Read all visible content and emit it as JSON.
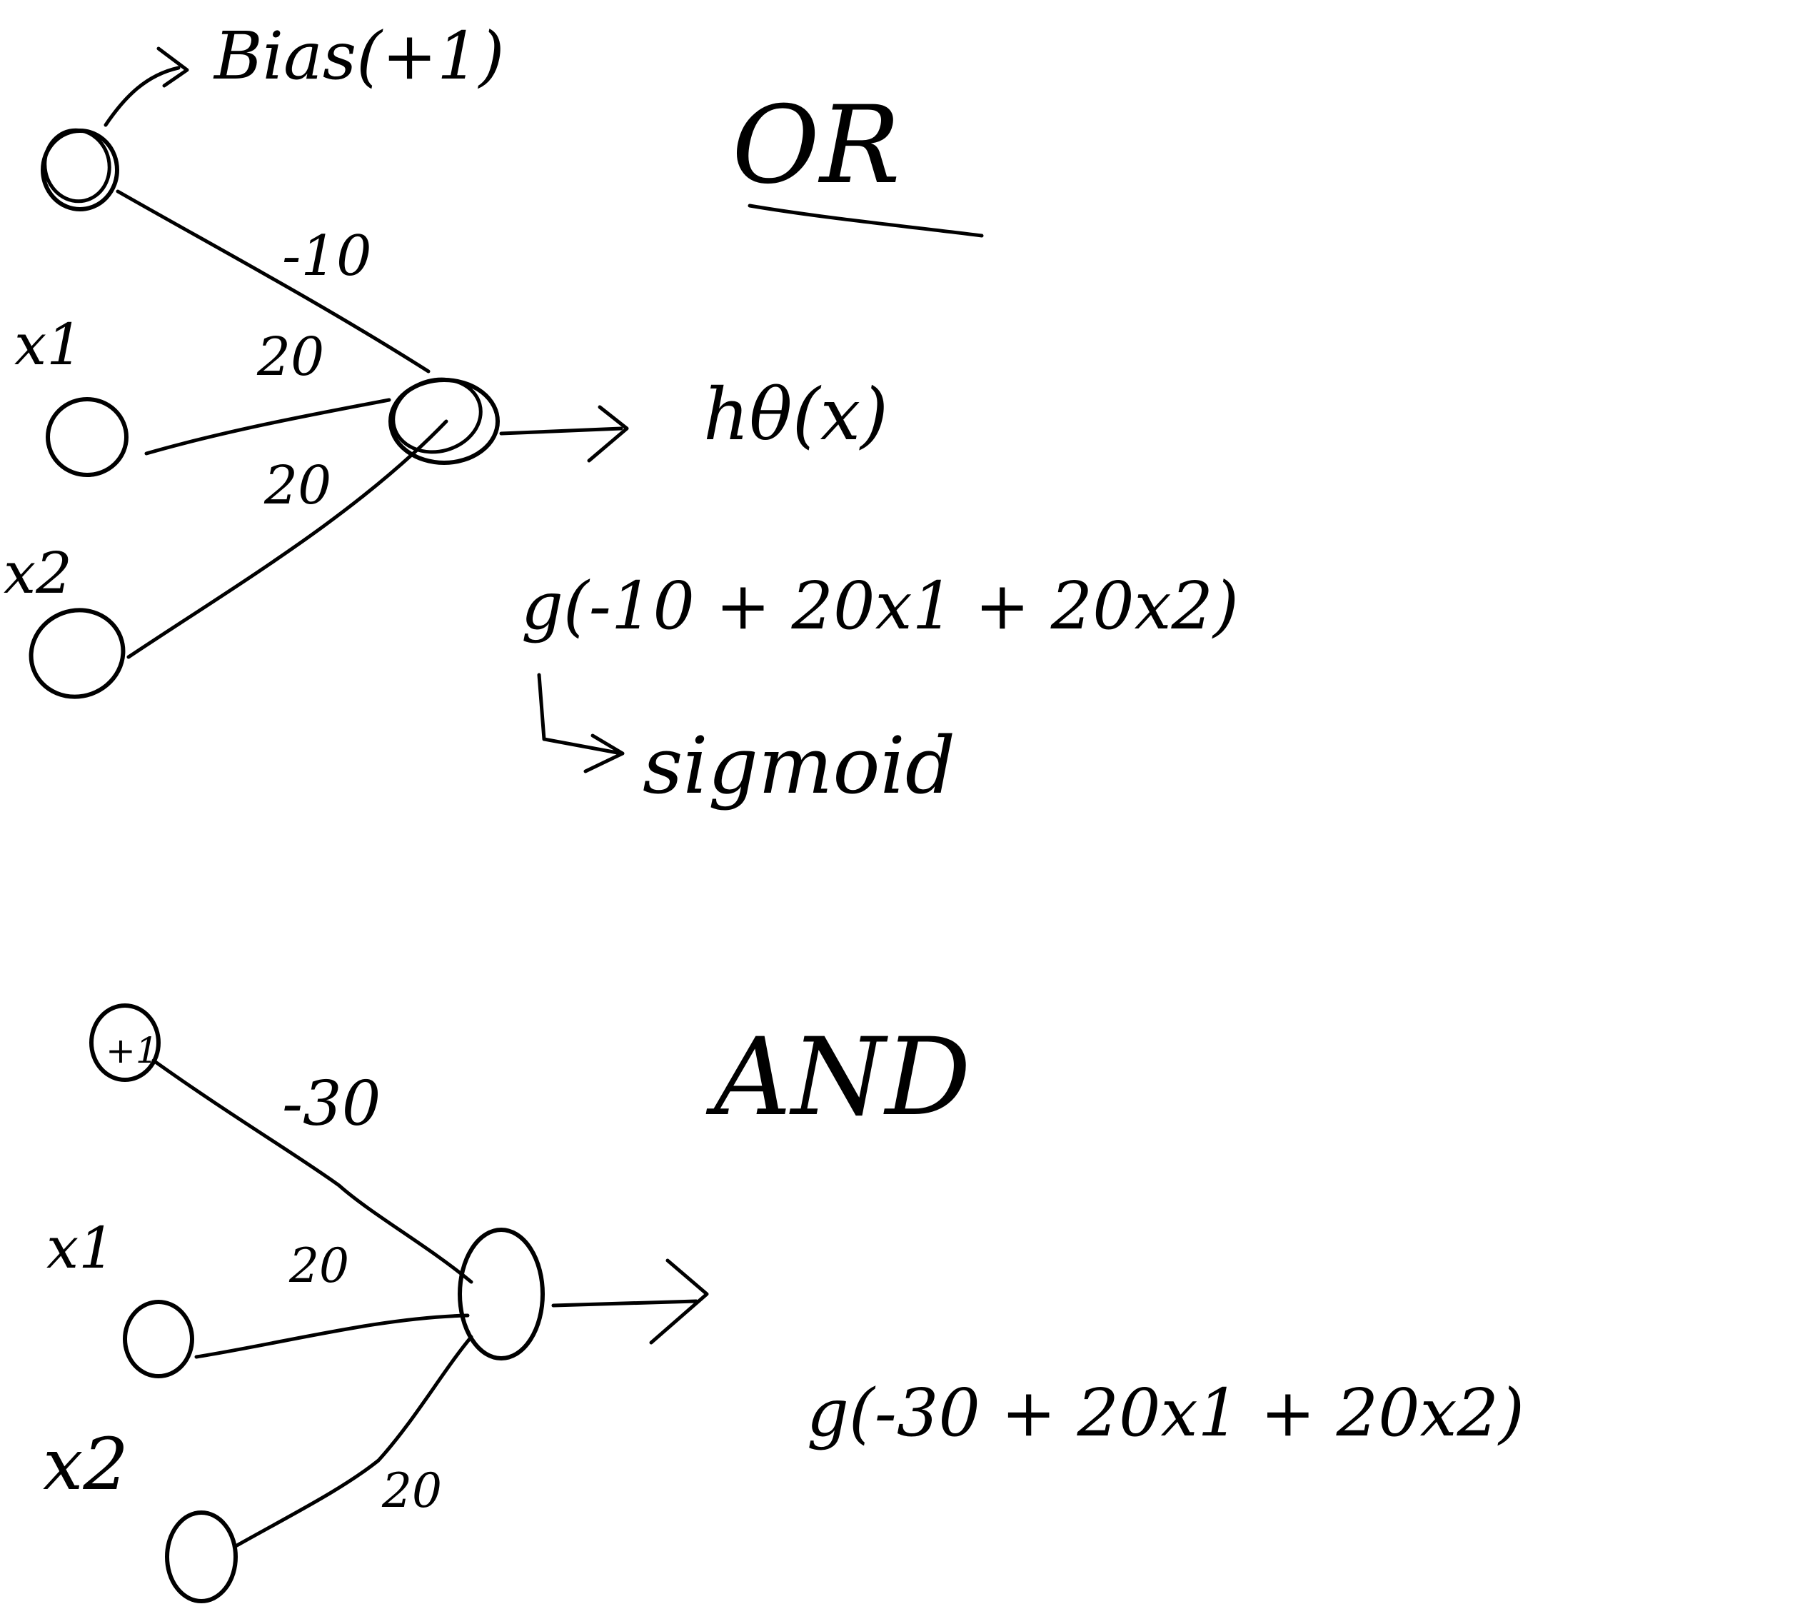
{
  "colors": {
    "ink": "#000000",
    "paper": "#ffffff"
  },
  "or_diagram": {
    "title": "OR",
    "bias_label": "Bias(+1)",
    "x1_label": "x1",
    "x2_label": "x2",
    "weight_bias": "-10",
    "weight_x1": "20",
    "weight_x2": "20",
    "output_label": "hθ(x)",
    "equation": "g(-10 + 20x1 + 20x2)",
    "sigmoid_note": "sigmoid"
  },
  "and_diagram": {
    "title": "AND",
    "bias_node_label": "+1",
    "x1_label": "x1",
    "x2_label": "x2",
    "weight_bias": "-30",
    "weight_x1": "20",
    "weight_x2": "20",
    "equation": "g(-30 + 20x1 + 20x2)"
  }
}
